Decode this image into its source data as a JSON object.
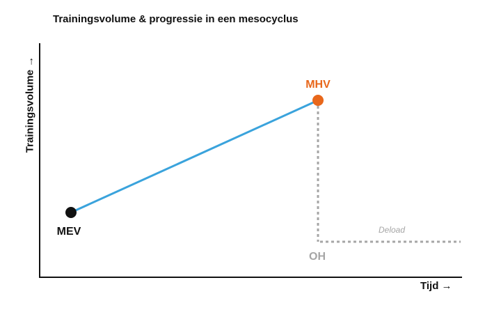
{
  "title": "Trainingsvolume & progressie in een mesocyclus",
  "axes": {
    "y_label": "Trainingsvolume →",
    "x_label": "Tijd →"
  },
  "points": {
    "mev": {
      "label": "MEV",
      "color": "#111111"
    },
    "mhv": {
      "label": "MHV",
      "color": "#E8671B"
    },
    "oh": {
      "label": "OH",
      "color": "#A6A6A6"
    }
  },
  "deload_label": "Deload",
  "colors": {
    "progression_line": "#3AA3DC",
    "dotted_line": "#A6A6A6",
    "axis": "#111111"
  }
}
